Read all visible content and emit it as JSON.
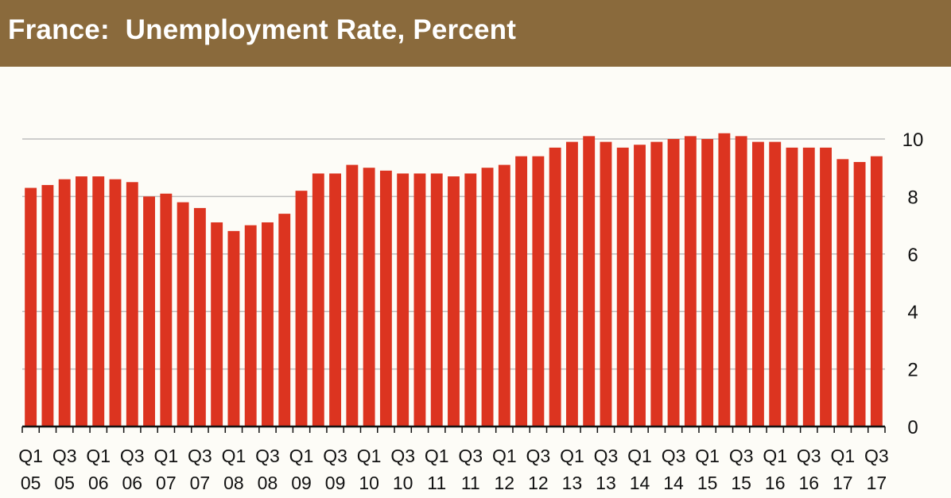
{
  "chart_data": {
    "type": "bar",
    "title": "France:  Unemployment Rate, Percent",
    "xlabel": "",
    "ylabel": "",
    "ylim": [
      0,
      10
    ],
    "yticks": [
      0,
      2,
      4,
      6,
      8,
      10
    ],
    "y_axis_side": "right",
    "grid": "horizontal",
    "bar_color": "#dc3420",
    "categories": [
      "Q1 05",
      "Q2 05",
      "Q3 05",
      "Q4 05",
      "Q1 06",
      "Q2 06",
      "Q3 06",
      "Q4 06",
      "Q1 07",
      "Q2 07",
      "Q3 07",
      "Q4 07",
      "Q1 08",
      "Q2 08",
      "Q3 08",
      "Q4 08",
      "Q1 09",
      "Q2 09",
      "Q3 09",
      "Q4 09",
      "Q1 10",
      "Q2 10",
      "Q3 10",
      "Q4 10",
      "Q1 11",
      "Q2 11",
      "Q3 11",
      "Q4 11",
      "Q1 12",
      "Q2 12",
      "Q3 12",
      "Q4 12",
      "Q1 13",
      "Q2 13",
      "Q3 13",
      "Q4 13",
      "Q1 14",
      "Q2 14",
      "Q3 14",
      "Q4 14",
      "Q1 15",
      "Q2 15",
      "Q3 15",
      "Q4 15",
      "Q1 16",
      "Q2 16",
      "Q3 16",
      "Q4 16",
      "Q1 17",
      "Q2 17",
      "Q3 17"
    ],
    "values": [
      8.3,
      8.4,
      8.6,
      8.7,
      8.7,
      8.6,
      8.5,
      8.0,
      8.1,
      7.8,
      7.6,
      7.1,
      6.8,
      7.0,
      7.1,
      7.4,
      8.2,
      8.8,
      8.8,
      9.1,
      9.0,
      8.9,
      8.8,
      8.8,
      8.8,
      8.7,
      8.8,
      9.0,
      9.1,
      9.4,
      9.4,
      9.7,
      9.9,
      10.1,
      9.9,
      9.7,
      9.8,
      9.9,
      10.0,
      10.1,
      10.0,
      10.2,
      10.1,
      9.9,
      9.9,
      9.7,
      9.7,
      9.7,
      9.3,
      9.2,
      9.4
    ],
    "x_tick_labels": [
      {
        "q": "Q1",
        "y": "05"
      },
      {
        "q": "Q3",
        "y": "05"
      },
      {
        "q": "Q1",
        "y": "06"
      },
      {
        "q": "Q3",
        "y": "06"
      },
      {
        "q": "Q1",
        "y": "07"
      },
      {
        "q": "Q3",
        "y": "07"
      },
      {
        "q": "Q1",
        "y": "08"
      },
      {
        "q": "Q3",
        "y": "08"
      },
      {
        "q": "Q1",
        "y": "09"
      },
      {
        "q": "Q3",
        "y": "09"
      },
      {
        "q": "Q1",
        "y": "10"
      },
      {
        "q": "Q3",
        "y": "10"
      },
      {
        "q": "Q1",
        "y": "11"
      },
      {
        "q": "Q3",
        "y": "11"
      },
      {
        "q": "Q1",
        "y": "12"
      },
      {
        "q": "Q3",
        "y": "12"
      },
      {
        "q": "Q1",
        "y": "13"
      },
      {
        "q": "Q3",
        "y": "13"
      },
      {
        "q": "Q1",
        "y": "14"
      },
      {
        "q": "Q3",
        "y": "14"
      },
      {
        "q": "Q1",
        "y": "15"
      },
      {
        "q": "Q3",
        "y": "15"
      },
      {
        "q": "Q1",
        "y": "16"
      },
      {
        "q": "Q3",
        "y": "16"
      },
      {
        "q": "Q1",
        "y": "17"
      },
      {
        "q": "Q3",
        "y": "17"
      }
    ]
  }
}
